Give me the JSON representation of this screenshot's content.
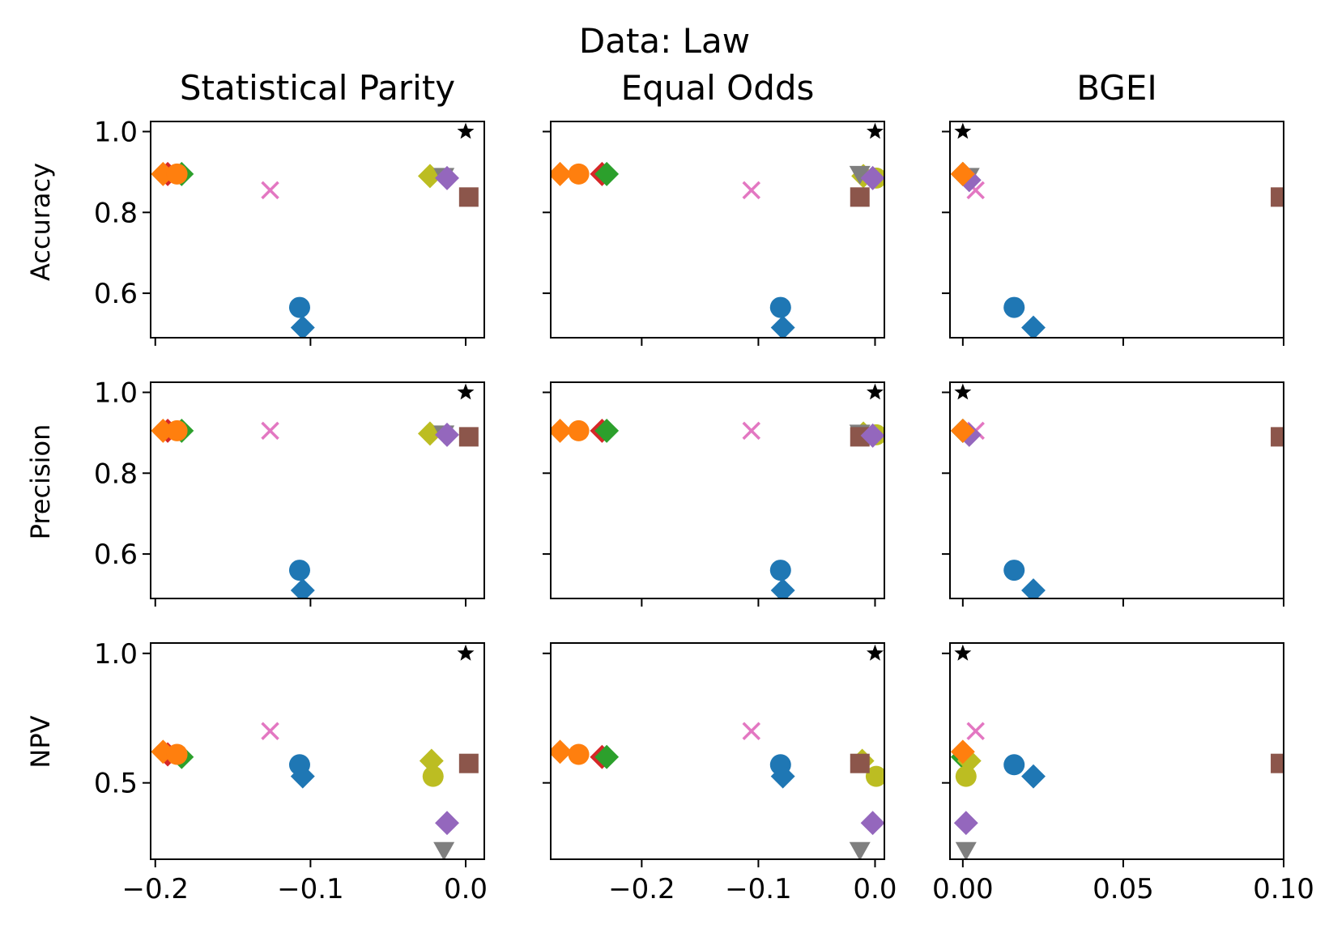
{
  "suptitle": "Data: Law",
  "columns": [
    {
      "title": "Statistical Parity",
      "xlim": [
        -0.203,
        0.012
      ],
      "ticks": [
        -0.2,
        -0.1,
        0.0
      ],
      "tick_labels": [
        "−0.2",
        "−0.1",
        "0.0"
      ]
    },
    {
      "title": "Equal Odds",
      "xlim": [
        -0.278,
        0.008
      ],
      "ticks": [
        -0.2,
        -0.1,
        0.0
      ],
      "tick_labels": [
        "−0.2",
        "−0.1",
        "0.0"
      ]
    },
    {
      "title": "BGEI",
      "xlim": [
        -0.004,
        0.1
      ],
      "ticks": [
        0.0,
        0.05,
        0.1
      ],
      "tick_labels": [
        "0.00",
        "0.05",
        "0.10"
      ]
    }
  ],
  "rows": [
    {
      "label": "Accuracy",
      "ylim": [
        0.49,
        1.025
      ],
      "ticks": [
        0.6,
        0.8,
        1.0
      ],
      "tick_labels": [
        "0.6",
        "0.8",
        "1.0"
      ]
    },
    {
      "label": "Precision",
      "ylim": [
        0.49,
        1.025
      ],
      "ticks": [
        0.6,
        0.8,
        1.0
      ],
      "tick_labels": [
        "0.6",
        "0.8",
        "1.0"
      ]
    },
    {
      "label": "NPV",
      "ylim": [
        0.205,
        1.04
      ],
      "ticks": [
        0.5,
        1.0
      ],
      "tick_labels": [
        "0.5",
        "1.0"
      ]
    }
  ],
  "chart_data": [
    {
      "type": "scatter",
      "row": 0,
      "col": 0,
      "points": [
        {
          "x": -0.107,
          "y": 0.565,
          "marker": "circle",
          "color": "#1f77b4"
        },
        {
          "x": -0.105,
          "y": 0.515,
          "marker": "diamond",
          "color": "#1f77b4"
        },
        {
          "x": -0.192,
          "y": 0.895,
          "marker": "diamond",
          "color": "#d62728"
        },
        {
          "x": -0.183,
          "y": 0.895,
          "marker": "diamond",
          "color": "#2ca02c"
        },
        {
          "x": -0.195,
          "y": 0.895,
          "marker": "diamond",
          "color": "#ff7f0e"
        },
        {
          "x": -0.186,
          "y": 0.895,
          "marker": "circle",
          "color": "#ff7f0e"
        },
        {
          "x": -0.126,
          "y": 0.855,
          "marker": "x",
          "color": "#e377c2"
        },
        {
          "x": -0.023,
          "y": 0.89,
          "marker": "diamond",
          "color": "#bcbd22"
        },
        {
          "x": -0.014,
          "y": 0.89,
          "marker": "triangle_down",
          "color": "#7f7f7f"
        },
        {
          "x": -0.012,
          "y": 0.885,
          "marker": "diamond",
          "color": "#9467bd"
        },
        {
          "x": 0.002,
          "y": 0.838,
          "marker": "square",
          "color": "#8c564b"
        },
        {
          "x": 0.0,
          "y": 1.0,
          "marker": "star",
          "color": "#000000"
        }
      ]
    },
    {
      "type": "scatter",
      "row": 0,
      "col": 1,
      "points": [
        {
          "x": -0.081,
          "y": 0.565,
          "marker": "circle",
          "color": "#1f77b4"
        },
        {
          "x": -0.079,
          "y": 0.515,
          "marker": "diamond",
          "color": "#1f77b4"
        },
        {
          "x": -0.234,
          "y": 0.895,
          "marker": "diamond",
          "color": "#d62728"
        },
        {
          "x": -0.23,
          "y": 0.895,
          "marker": "diamond",
          "color": "#2ca02c"
        },
        {
          "x": -0.27,
          "y": 0.895,
          "marker": "diamond",
          "color": "#ff7f0e"
        },
        {
          "x": -0.254,
          "y": 0.895,
          "marker": "circle",
          "color": "#ff7f0e"
        },
        {
          "x": -0.106,
          "y": 0.855,
          "marker": "x",
          "color": "#e377c2"
        },
        {
          "x": -0.01,
          "y": 0.89,
          "marker": "diamond",
          "color": "#bcbd22"
        },
        {
          "x": 0.001,
          "y": 0.885,
          "marker": "circle",
          "color": "#bcbd22"
        },
        {
          "x": -0.013,
          "y": 0.895,
          "marker": "triangle_down",
          "color": "#7f7f7f"
        },
        {
          "x": -0.002,
          "y": 0.885,
          "marker": "diamond",
          "color": "#9467bd"
        },
        {
          "x": -0.013,
          "y": 0.838,
          "marker": "square",
          "color": "#8c564b"
        },
        {
          "x": 0.0,
          "y": 1.0,
          "marker": "star",
          "color": "#000000"
        }
      ]
    },
    {
      "type": "scatter",
      "row": 0,
      "col": 2,
      "points": [
        {
          "x": 0.016,
          "y": 0.565,
          "marker": "circle",
          "color": "#1f77b4"
        },
        {
          "x": 0.022,
          "y": 0.515,
          "marker": "diamond",
          "color": "#1f77b4"
        },
        {
          "x": 0.0,
          "y": 0.895,
          "marker": "diamond",
          "color": "#d62728"
        },
        {
          "x": 0.0,
          "y": 0.895,
          "marker": "diamond",
          "color": "#2ca02c"
        },
        {
          "x": 0.0,
          "y": 0.895,
          "marker": "diamond",
          "color": "#ff7f0e"
        },
        {
          "x": 0.004,
          "y": 0.855,
          "marker": "x",
          "color": "#e377c2"
        },
        {
          "x": 0.002,
          "y": 0.89,
          "marker": "triangle_down",
          "color": "#7f7f7f"
        },
        {
          "x": 0.002,
          "y": 0.88,
          "marker": "diamond",
          "color": "#9467bd"
        },
        {
          "x": 0.0,
          "y": 0.895,
          "marker": "diamond",
          "color": "#ff7f0e"
        },
        {
          "x": 0.099,
          "y": 0.838,
          "marker": "square",
          "color": "#8c564b"
        },
        {
          "x": 0.0,
          "y": 1.0,
          "marker": "star",
          "color": "#000000"
        }
      ]
    },
    {
      "type": "scatter",
      "row": 1,
      "col": 0,
      "points": [
        {
          "x": -0.107,
          "y": 0.56,
          "marker": "circle",
          "color": "#1f77b4"
        },
        {
          "x": -0.105,
          "y": 0.51,
          "marker": "diamond",
          "color": "#1f77b4"
        },
        {
          "x": -0.192,
          "y": 0.905,
          "marker": "diamond",
          "color": "#d62728"
        },
        {
          "x": -0.183,
          "y": 0.905,
          "marker": "diamond",
          "color": "#2ca02c"
        },
        {
          "x": -0.195,
          "y": 0.905,
          "marker": "diamond",
          "color": "#ff7f0e"
        },
        {
          "x": -0.186,
          "y": 0.905,
          "marker": "circle",
          "color": "#ff7f0e"
        },
        {
          "x": -0.126,
          "y": 0.905,
          "marker": "x",
          "color": "#e377c2"
        },
        {
          "x": -0.023,
          "y": 0.898,
          "marker": "diamond",
          "color": "#bcbd22"
        },
        {
          "x": -0.014,
          "y": 0.898,
          "marker": "triangle_down",
          "color": "#7f7f7f"
        },
        {
          "x": -0.012,
          "y": 0.895,
          "marker": "diamond",
          "color": "#9467bd"
        },
        {
          "x": 0.002,
          "y": 0.89,
          "marker": "square",
          "color": "#8c564b"
        },
        {
          "x": 0.0,
          "y": 1.0,
          "marker": "star",
          "color": "#000000"
        }
      ]
    },
    {
      "type": "scatter",
      "row": 1,
      "col": 1,
      "points": [
        {
          "x": -0.081,
          "y": 0.56,
          "marker": "circle",
          "color": "#1f77b4"
        },
        {
          "x": -0.079,
          "y": 0.51,
          "marker": "diamond",
          "color": "#1f77b4"
        },
        {
          "x": -0.234,
          "y": 0.905,
          "marker": "diamond",
          "color": "#d62728"
        },
        {
          "x": -0.23,
          "y": 0.905,
          "marker": "diamond",
          "color": "#2ca02c"
        },
        {
          "x": -0.27,
          "y": 0.905,
          "marker": "diamond",
          "color": "#ff7f0e"
        },
        {
          "x": -0.254,
          "y": 0.905,
          "marker": "circle",
          "color": "#ff7f0e"
        },
        {
          "x": -0.106,
          "y": 0.905,
          "marker": "x",
          "color": "#e377c2"
        },
        {
          "x": -0.01,
          "y": 0.898,
          "marker": "diamond",
          "color": "#bcbd22"
        },
        {
          "x": 0.001,
          "y": 0.895,
          "marker": "circle",
          "color": "#bcbd22"
        },
        {
          "x": -0.013,
          "y": 0.9,
          "marker": "triangle_down",
          "color": "#7f7f7f"
        },
        {
          "x": -0.013,
          "y": 0.89,
          "marker": "square",
          "color": "#8c564b"
        },
        {
          "x": -0.002,
          "y": 0.893,
          "marker": "diamond",
          "color": "#9467bd"
        },
        {
          "x": 0.0,
          "y": 1.0,
          "marker": "star",
          "color": "#000000"
        }
      ]
    },
    {
      "type": "scatter",
      "row": 1,
      "col": 2,
      "points": [
        {
          "x": 0.016,
          "y": 0.56,
          "marker": "circle",
          "color": "#1f77b4"
        },
        {
          "x": 0.022,
          "y": 0.51,
          "marker": "diamond",
          "color": "#1f77b4"
        },
        {
          "x": 0.0,
          "y": 0.905,
          "marker": "diamond",
          "color": "#d62728"
        },
        {
          "x": 0.0,
          "y": 0.905,
          "marker": "diamond",
          "color": "#2ca02c"
        },
        {
          "x": 0.004,
          "y": 0.905,
          "marker": "x",
          "color": "#e377c2"
        },
        {
          "x": 0.002,
          "y": 0.895,
          "marker": "diamond",
          "color": "#9467bd"
        },
        {
          "x": 0.0,
          "y": 0.905,
          "marker": "diamond",
          "color": "#ff7f0e"
        },
        {
          "x": 0.099,
          "y": 0.89,
          "marker": "square",
          "color": "#8c564b"
        },
        {
          "x": 0.0,
          "y": 1.0,
          "marker": "star",
          "color": "#000000"
        }
      ]
    },
    {
      "type": "scatter",
      "row": 2,
      "col": 0,
      "points": [
        {
          "x": -0.107,
          "y": 0.57,
          "marker": "circle",
          "color": "#1f77b4"
        },
        {
          "x": -0.105,
          "y": 0.525,
          "marker": "diamond",
          "color": "#1f77b4"
        },
        {
          "x": -0.192,
          "y": 0.61,
          "marker": "diamond",
          "color": "#d62728"
        },
        {
          "x": -0.183,
          "y": 0.6,
          "marker": "diamond",
          "color": "#2ca02c"
        },
        {
          "x": -0.195,
          "y": 0.62,
          "marker": "diamond",
          "color": "#ff7f0e"
        },
        {
          "x": -0.186,
          "y": 0.61,
          "marker": "circle",
          "color": "#ff7f0e"
        },
        {
          "x": -0.126,
          "y": 0.7,
          "marker": "x",
          "color": "#e377c2"
        },
        {
          "x": -0.022,
          "y": 0.585,
          "marker": "diamond",
          "color": "#bcbd22"
        },
        {
          "x": -0.021,
          "y": 0.525,
          "marker": "circle",
          "color": "#bcbd22"
        },
        {
          "x": -0.012,
          "y": 0.345,
          "marker": "diamond",
          "color": "#9467bd"
        },
        {
          "x": -0.014,
          "y": 0.24,
          "marker": "triangle_down",
          "color": "#7f7f7f"
        },
        {
          "x": 0.002,
          "y": 0.575,
          "marker": "square",
          "color": "#8c564b"
        },
        {
          "x": 0.0,
          "y": 1.0,
          "marker": "star",
          "color": "#000000"
        }
      ]
    },
    {
      "type": "scatter",
      "row": 2,
      "col": 1,
      "points": [
        {
          "x": -0.081,
          "y": 0.57,
          "marker": "circle",
          "color": "#1f77b4"
        },
        {
          "x": -0.079,
          "y": 0.525,
          "marker": "diamond",
          "color": "#1f77b4"
        },
        {
          "x": -0.234,
          "y": 0.6,
          "marker": "diamond",
          "color": "#d62728"
        },
        {
          "x": -0.23,
          "y": 0.6,
          "marker": "diamond",
          "color": "#2ca02c"
        },
        {
          "x": -0.27,
          "y": 0.62,
          "marker": "diamond",
          "color": "#ff7f0e"
        },
        {
          "x": -0.254,
          "y": 0.61,
          "marker": "circle",
          "color": "#ff7f0e"
        },
        {
          "x": -0.106,
          "y": 0.7,
          "marker": "x",
          "color": "#e377c2"
        },
        {
          "x": -0.011,
          "y": 0.585,
          "marker": "diamond",
          "color": "#bcbd22"
        },
        {
          "x": 0.001,
          "y": 0.525,
          "marker": "circle",
          "color": "#bcbd22"
        },
        {
          "x": -0.013,
          "y": 0.575,
          "marker": "square",
          "color": "#8c564b"
        },
        {
          "x": -0.002,
          "y": 0.345,
          "marker": "diamond",
          "color": "#9467bd"
        },
        {
          "x": -0.013,
          "y": 0.24,
          "marker": "triangle_down",
          "color": "#7f7f7f"
        },
        {
          "x": 0.0,
          "y": 1.0,
          "marker": "star",
          "color": "#000000"
        }
      ]
    },
    {
      "type": "scatter",
      "row": 2,
      "col": 2,
      "points": [
        {
          "x": 0.016,
          "y": 0.57,
          "marker": "circle",
          "color": "#1f77b4"
        },
        {
          "x": 0.022,
          "y": 0.525,
          "marker": "diamond",
          "color": "#1f77b4"
        },
        {
          "x": 0.0,
          "y": 0.6,
          "marker": "diamond",
          "color": "#2ca02c"
        },
        {
          "x": 0.002,
          "y": 0.585,
          "marker": "diamond",
          "color": "#bcbd22"
        },
        {
          "x": 0.001,
          "y": 0.525,
          "marker": "circle",
          "color": "#bcbd22"
        },
        {
          "x": 0.004,
          "y": 0.7,
          "marker": "x",
          "color": "#e377c2"
        },
        {
          "x": 0.0,
          "y": 0.62,
          "marker": "diamond",
          "color": "#ff7f0e"
        },
        {
          "x": 0.001,
          "y": 0.345,
          "marker": "diamond",
          "color": "#9467bd"
        },
        {
          "x": 0.001,
          "y": 0.24,
          "marker": "triangle_down",
          "color": "#7f7f7f"
        },
        {
          "x": 0.099,
          "y": 0.575,
          "marker": "square",
          "color": "#8c564b"
        },
        {
          "x": 0.0,
          "y": 1.0,
          "marker": "star",
          "color": "#000000"
        }
      ]
    }
  ]
}
